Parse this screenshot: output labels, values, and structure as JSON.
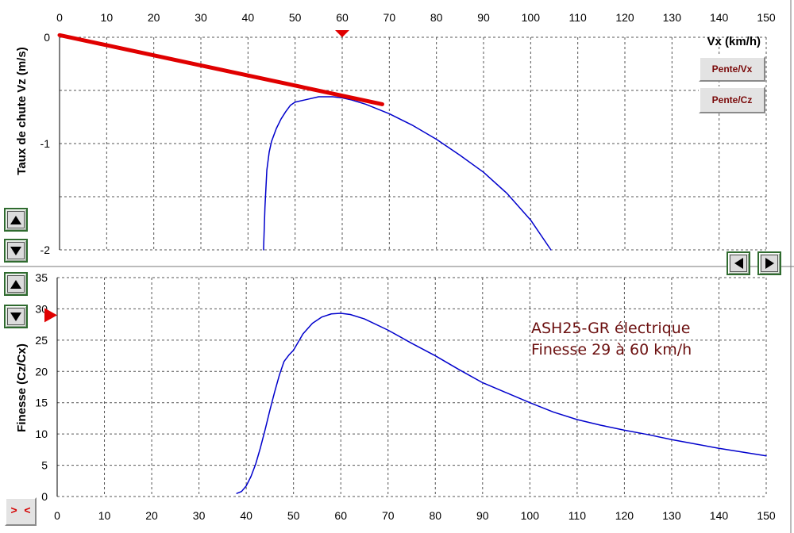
{
  "colors": {
    "curve": "#0000cc",
    "tangent": "#e00000",
    "marker": "#e00000",
    "annotation": "#6b0f0f",
    "grid": "#555555",
    "divider": "#777777"
  },
  "buttons": {
    "pente_vx": "Pente/Vx",
    "pente_cz": "Pente/Cz",
    "collapse": "> <"
  },
  "icons": {
    "top_up": "up-arrow-icon",
    "top_down": "down-arrow-icon",
    "bottom_up": "up-arrow-icon",
    "bottom_down": "down-arrow-icon",
    "left": "left-arrow-icon",
    "right": "right-arrow-icon"
  },
  "annotation": {
    "line1": "ASH25-GR électrique",
    "line2": "Finesse 29 à 60 km/h"
  },
  "chart_data": [
    {
      "type": "line",
      "title": "",
      "xlabel": "Vx (km/h)",
      "ylabel": "Taux de chute Vz (m/s)",
      "xlim": [
        0,
        150
      ],
      "ylim": [
        -2,
        0
      ],
      "x_ticks": [
        0,
        10,
        20,
        30,
        40,
        50,
        60,
        70,
        80,
        90,
        100,
        110,
        120,
        130,
        140,
        150
      ],
      "x_tick_labels": [
        "0",
        "10",
        "20",
        "30",
        "40",
        "50",
        "60",
        "70",
        "80",
        "90",
        "100",
        "110",
        "120",
        "130",
        "140",
        "150"
      ],
      "y_ticks": [
        0,
        -1,
        -2
      ],
      "y_tick_labels": [
        "0",
        "-1",
        "-2"
      ],
      "grid": true,
      "x_marker": 60,
      "series": [
        {
          "x": [
            43.3,
            43.6,
            44.0,
            44.5,
            45.0,
            46.0,
            47.0,
            48.0,
            49.0,
            50.0,
            52.0,
            55.0,
            58.0,
            60.0,
            62.0,
            65.0,
            70.0,
            75.0,
            80.0,
            85.0,
            90.0,
            95.0,
            100.0,
            104.3
          ],
          "y": [
            -2.0,
            -1.6,
            -1.25,
            -1.08,
            -0.98,
            -0.86,
            -0.77,
            -0.7,
            -0.64,
            -0.61,
            -0.59,
            -0.56,
            -0.56,
            -0.57,
            -0.59,
            -0.63,
            -0.72,
            -0.83,
            -0.96,
            -1.11,
            -1.27,
            -1.47,
            -1.72,
            -2.0
          ]
        },
        {
          "x": [
            0,
            68.5
          ],
          "y": [
            0.02,
            -0.63
          ]
        }
      ]
    },
    {
      "type": "line",
      "title": "",
      "xlabel": "",
      "ylabel": "Finesse (Cz/Cx)",
      "xlim": [
        0,
        150
      ],
      "ylim": [
        0,
        35
      ],
      "x_ticks": [
        0,
        10,
        20,
        30,
        40,
        50,
        60,
        70,
        80,
        90,
        100,
        110,
        120,
        130,
        140,
        150
      ],
      "x_tick_labels": [
        "0",
        "10",
        "20",
        "30",
        "40",
        "50",
        "60",
        "70",
        "80",
        "90",
        "100",
        "110",
        "120",
        "130",
        "140",
        "150"
      ],
      "y_ticks": [
        0,
        5,
        10,
        15,
        20,
        25,
        30,
        35
      ],
      "y_tick_labels": [
        "0",
        "5",
        "10",
        "15",
        "20",
        "25",
        "30",
        "35"
      ],
      "grid": true,
      "y_marker": 29,
      "series": [
        {
          "x": [
            38.0,
            39.0,
            40.0,
            41.0,
            42.0,
            43.0,
            44.0,
            45.0,
            46.0,
            47.0,
            48.0,
            49.0,
            50.0,
            52.0,
            54.0,
            56.0,
            58.0,
            60.0,
            62.0,
            65.0,
            70.0,
            75.0,
            80.0,
            85.0,
            90.0,
            95.0,
            100.0,
            105.0,
            110.0,
            115.0,
            120.0,
            125.0,
            130.0,
            135.0,
            140.0,
            145.0,
            150.0
          ],
          "y": [
            0.5,
            0.8,
            1.7,
            3.2,
            5.2,
            7.8,
            10.7,
            13.8,
            16.7,
            19.4,
            21.6,
            22.6,
            23.4,
            26.0,
            27.7,
            28.7,
            29.2,
            29.3,
            29.1,
            28.4,
            26.6,
            24.5,
            22.5,
            20.3,
            18.2,
            16.6,
            15.0,
            13.5,
            12.3,
            11.4,
            10.6,
            9.9,
            9.1,
            8.4,
            7.7,
            7.1,
            6.5
          ]
        }
      ]
    }
  ]
}
